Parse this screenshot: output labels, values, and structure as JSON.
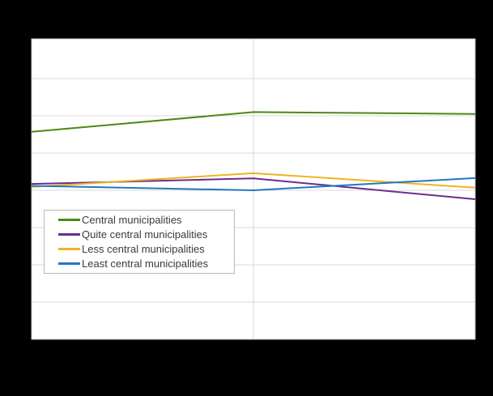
{
  "background_color": "#000000",
  "plot": {
    "fill": "#ffffff",
    "border_color": "#c6c6c6",
    "gridline_color": "#d9d9d9"
  },
  "chart_data": {
    "type": "line",
    "title": "",
    "xlabel": "",
    "ylabel": "",
    "x": [
      0,
      1,
      2
    ],
    "series": [
      {
        "name": "Central municipalities",
        "color": "#4b8a12",
        "values": [
          5.57,
          6.1,
          6.05
        ]
      },
      {
        "name": "Quite central municipalities",
        "color": "#6b2c8f",
        "values": [
          4.17,
          4.32,
          3.76
        ]
      },
      {
        "name": "Less central municipalities",
        "color": "#edb41e",
        "values": [
          4.09,
          4.46,
          4.07
        ]
      },
      {
        "name": "Least central municipalities",
        "color": "#2278c0",
        "values": [
          4.12,
          4.0,
          4.33
        ]
      }
    ],
    "ylim": [
      0,
      8.07
    ],
    "y_units": "gridline intervals (axis tick labels not visible in image)",
    "grid": true,
    "vertical_gridlines_at_x": [
      1
    ],
    "legend_position": "inside-left-middle"
  }
}
